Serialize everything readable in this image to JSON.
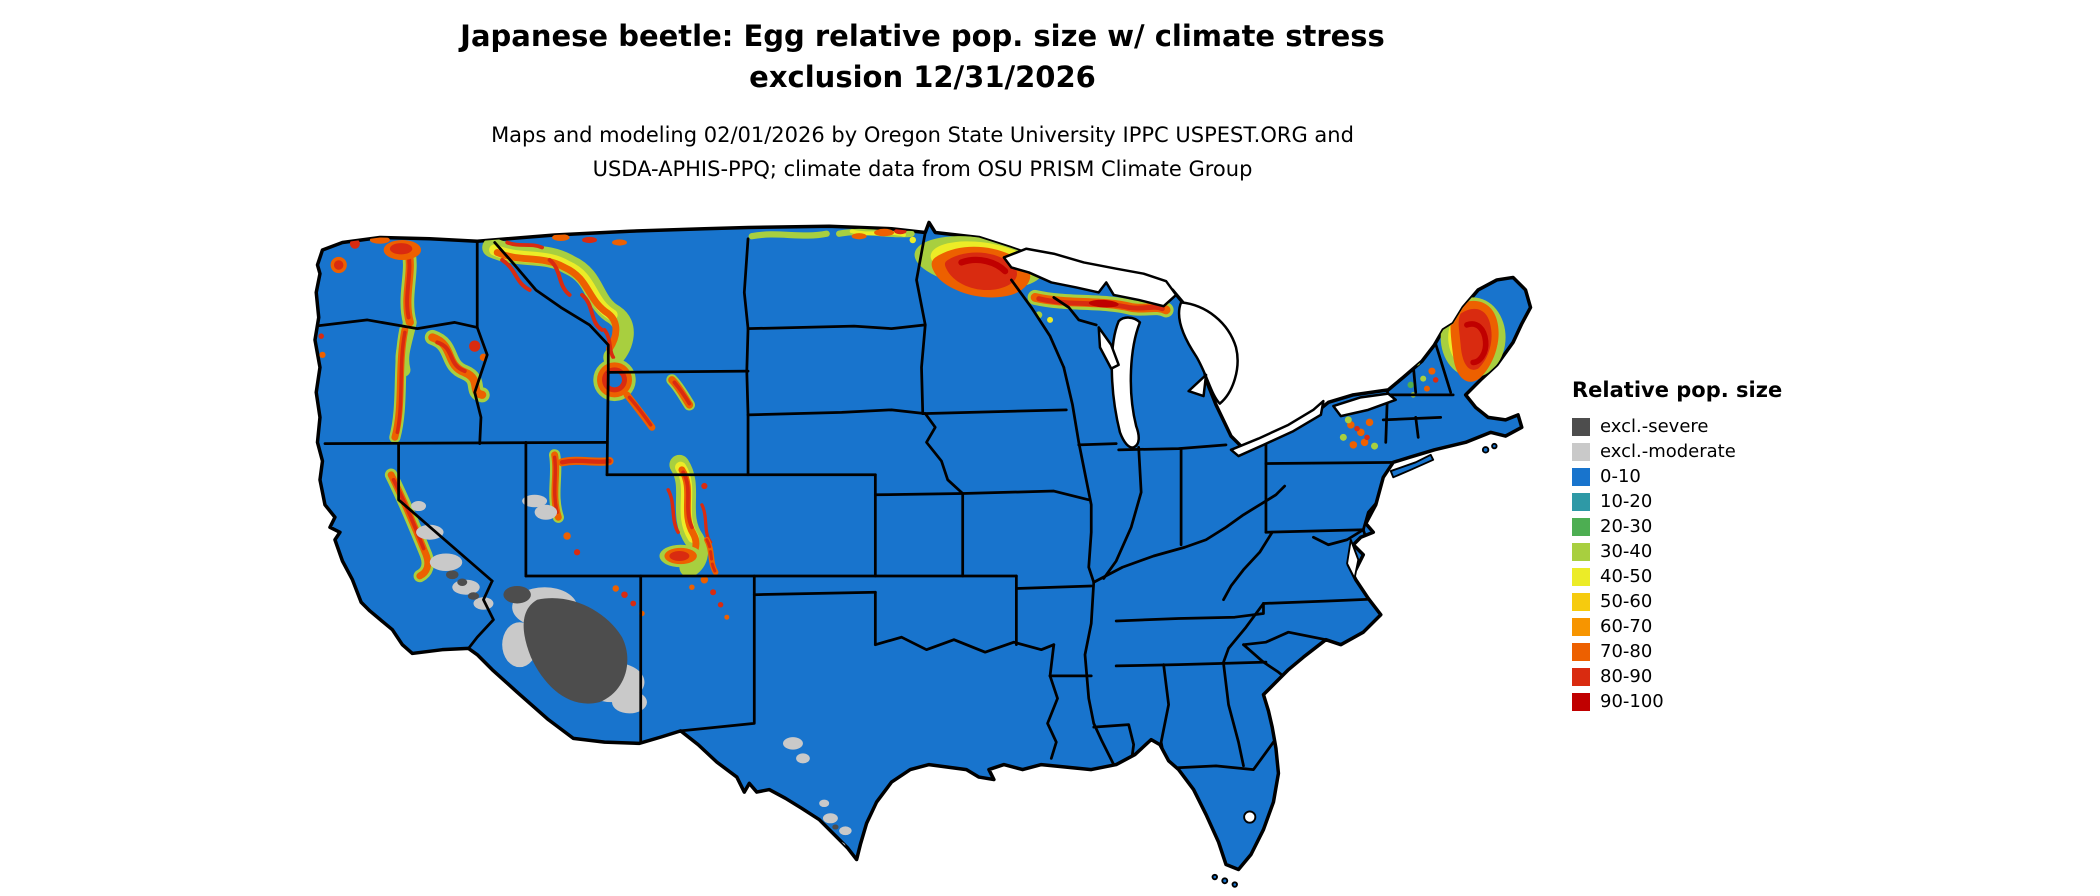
{
  "title": {
    "lines": [
      "Japanese beetle: Egg relative pop. size w/ climate stress",
      "exclusion 12/31/2026"
    ]
  },
  "subtitle": {
    "lines": [
      "Maps and modeling 02/01/2026 by Oregon State University IPPC USPEST.ORG and",
      "USDA-APHIS-PPQ; climate data from OSU PRISM Climate Group"
    ]
  },
  "legend": {
    "title": "Relative pop. size",
    "items": [
      {
        "label": "excl.-severe",
        "color": "#4d4d4d"
      },
      {
        "label": "excl.-moderate",
        "color": "#c9c9c9"
      },
      {
        "label": "0-10",
        "color": "#1874cd"
      },
      {
        "label": "10-20",
        "color": "#2e99a6"
      },
      {
        "label": "20-30",
        "color": "#4dae52"
      },
      {
        "label": "30-40",
        "color": "#a8cf3f"
      },
      {
        "label": "40-50",
        "color": "#ecec27"
      },
      {
        "label": "50-60",
        "color": "#f6cb0e"
      },
      {
        "label": "60-70",
        "color": "#f79500"
      },
      {
        "label": "70-80",
        "color": "#ed6000"
      },
      {
        "label": "80-90",
        "color": "#d92b10"
      },
      {
        "label": "90-100",
        "color": "#c00000"
      }
    ]
  },
  "map": {
    "base_color": "#1874cd",
    "water_color": "#ffffff",
    "outline_color": "#000000"
  }
}
